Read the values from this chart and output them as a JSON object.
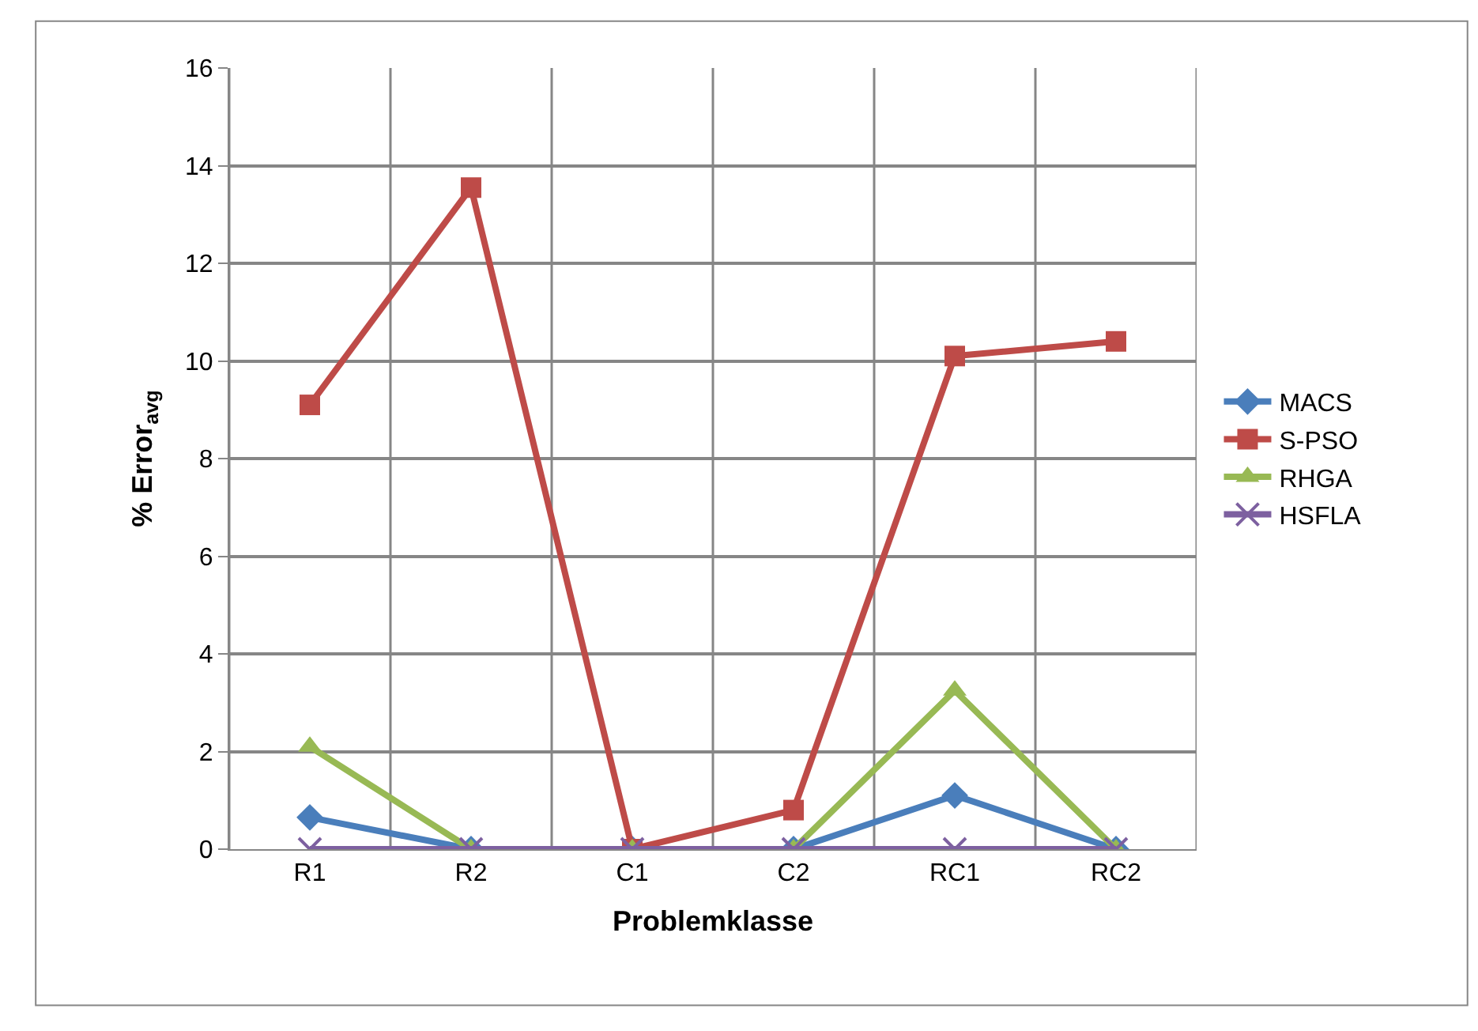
{
  "chart_data": {
    "type": "line",
    "xlabel": "Problemklasse",
    "ylabel": "% Error$_{avg}$",
    "categories": [
      "R1",
      "R2",
      "C1",
      "C2",
      "RC1",
      "RC2"
    ],
    "series": [
      {
        "name": "MACS",
        "color": "#4a7ebb",
        "marker": "diamond",
        "values": [
          0.65,
          0,
          0,
          0,
          1.1,
          0
        ]
      },
      {
        "name": "S-PSO",
        "color": "#be4b48",
        "marker": "square",
        "values": [
          9.1,
          13.55,
          0,
          0.8,
          10.1,
          10.4
        ]
      },
      {
        "name": "RHGA",
        "color": "#98b954",
        "marker": "triangle",
        "values": [
          2.1,
          0,
          0,
          0,
          3.25,
          0
        ]
      },
      {
        "name": "HSFLA",
        "color": "#7d60a0",
        "marker": "cross",
        "values": [
          0,
          0,
          0,
          0,
          0,
          0
        ]
      }
    ],
    "ylim": [
      0,
      16
    ],
    "yticks": [
      0,
      2,
      4,
      6,
      8,
      10,
      12,
      14,
      16
    ],
    "grid": true,
    "legend": "right",
    "line_style": "solid"
  }
}
